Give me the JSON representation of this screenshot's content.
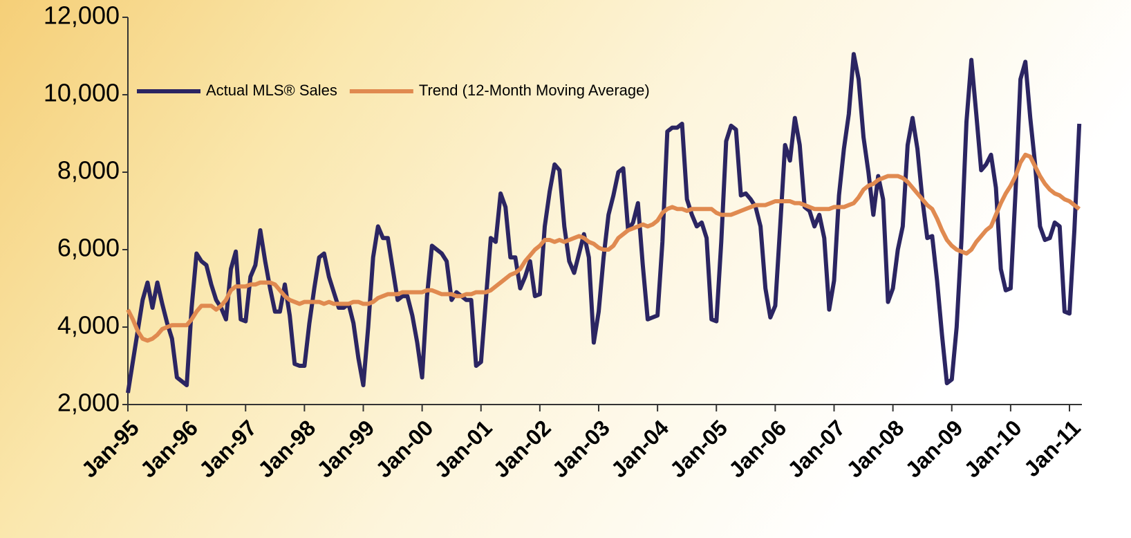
{
  "chart_data": {
    "type": "line",
    "categories": [
      "Jan-95",
      null,
      null,
      null,
      null,
      null,
      null,
      null,
      null,
      null,
      null,
      null,
      "Jan-96",
      null,
      null,
      null,
      null,
      null,
      null,
      null,
      null,
      null,
      null,
      null,
      "Jan-97",
      null,
      null,
      null,
      null,
      null,
      null,
      null,
      null,
      null,
      null,
      null,
      "Jan-98",
      null,
      null,
      null,
      null,
      null,
      null,
      null,
      null,
      null,
      null,
      null,
      "Jan-99",
      null,
      null,
      null,
      null,
      null,
      null,
      null,
      null,
      null,
      null,
      null,
      "Jan-00",
      null,
      null,
      null,
      null,
      null,
      null,
      null,
      null,
      null,
      null,
      null,
      "Jan-01",
      null,
      null,
      null,
      null,
      null,
      null,
      null,
      null,
      null,
      null,
      null,
      "Jan-02",
      null,
      null,
      null,
      null,
      null,
      null,
      null,
      null,
      null,
      null,
      null,
      "Jan-03",
      null,
      null,
      null,
      null,
      null,
      null,
      null,
      null,
      null,
      null,
      null,
      "Jan-04",
      null,
      null,
      null,
      null,
      null,
      null,
      null,
      null,
      null,
      null,
      null,
      "Jan-05",
      null,
      null,
      null,
      null,
      null,
      null,
      null,
      null,
      null,
      null,
      null,
      "Jan-06",
      null,
      null,
      null,
      null,
      null,
      null,
      null,
      null,
      null,
      null,
      null,
      "Jan-07",
      null,
      null,
      null,
      null,
      null,
      null,
      null,
      null,
      null,
      null,
      null,
      "Jan-08",
      null,
      null,
      null,
      null,
      null,
      null,
      null,
      null,
      null,
      null,
      null,
      "Jan-09",
      null,
      null,
      null,
      null,
      null,
      null,
      null,
      null,
      null,
      null,
      null,
      "Jan-10",
      null,
      null,
      null,
      null,
      null,
      null,
      null,
      null,
      null,
      null,
      null,
      "Jan-11",
      null,
      null
    ],
    "series": [
      {
        "name": "Actual MLS® Sales",
        "color": "#2b2562",
        "values": [
          2300,
          3100,
          3900,
          4700,
          5150,
          4500,
          5150,
          4600,
          4100,
          3700,
          2700,
          2600,
          2500,
          4500,
          5900,
          5700,
          5600,
          5100,
          4700,
          4500,
          4200,
          5500,
          5950,
          4200,
          4150,
          5300,
          5600,
          6500,
          5700,
          5000,
          4400,
          4400,
          5100,
          4300,
          3050,
          3000,
          3000,
          4100,
          5000,
          5800,
          5900,
          5300,
          4900,
          4500,
          4500,
          4600,
          4100,
          3200,
          2500,
          4000,
          5800,
          6600,
          6300,
          6300,
          5500,
          4700,
          4800,
          4800,
          4300,
          3600,
          2700,
          4800,
          6100,
          6000,
          5900,
          5700,
          4700,
          4900,
          4800,
          4700,
          4700,
          3000,
          3100,
          4700,
          6300,
          6200,
          7450,
          7100,
          5800,
          5800,
          5000,
          5300,
          5700,
          4800,
          4850,
          6600,
          7500,
          8200,
          8050,
          6600,
          5700,
          5400,
          5900,
          6400,
          5800,
          3600,
          4400,
          5800,
          6900,
          7400,
          8000,
          8100,
          6500,
          6700,
          7200,
          5600,
          4200,
          4250,
          4300,
          6200,
          9050,
          9150,
          9150,
          9250,
          7300,
          6900,
          6600,
          6700,
          6300,
          4200,
          4150,
          6200,
          8800,
          9200,
          9100,
          7400,
          7450,
          7300,
          7100,
          6600,
          5000,
          4250,
          4550,
          6600,
          8700,
          8300,
          9400,
          8700,
          7100,
          7000,
          6600,
          6900,
          6300,
          4450,
          5200,
          7400,
          8600,
          9500,
          11050,
          10400,
          8900,
          8000,
          6900,
          7900,
          7300,
          4650,
          5000,
          6000,
          6600,
          8700,
          9400,
          8600,
          7300,
          6300,
          6350,
          5200,
          3800,
          2550,
          2650,
          4000,
          6300,
          9300,
          10900,
          9500,
          8050,
          8200,
          8450,
          7600,
          5500,
          4950,
          5000,
          7500,
          10400,
          10850,
          9400,
          8200,
          6600,
          6250,
          6300,
          6700,
          6600,
          4400,
          4350,
          6500,
          9250
        ]
      },
      {
        "name": "Trend (12-Month Moving Average)",
        "color": "#e08a50",
        "values": [
          4450,
          4200,
          3900,
          3700,
          3650,
          3700,
          3800,
          3950,
          4000,
          4050,
          4050,
          4050,
          4050,
          4200,
          4400,
          4550,
          4550,
          4550,
          4450,
          4550,
          4700,
          4950,
          5050,
          5050,
          5050,
          5100,
          5100,
          5150,
          5150,
          5150,
          5100,
          4950,
          4800,
          4700,
          4650,
          4600,
          4650,
          4650,
          4650,
          4650,
          4600,
          4650,
          4600,
          4600,
          4600,
          4600,
          4650,
          4650,
          4600,
          4600,
          4650,
          4750,
          4800,
          4850,
          4850,
          4850,
          4900,
          4900,
          4900,
          4900,
          4900,
          4950,
          4950,
          4900,
          4850,
          4850,
          4850,
          4800,
          4800,
          4850,
          4850,
          4900,
          4900,
          4900,
          4950,
          5050,
          5150,
          5250,
          5350,
          5400,
          5500,
          5700,
          5850,
          6000,
          6100,
          6250,
          6250,
          6200,
          6250,
          6200,
          6250,
          6300,
          6350,
          6300,
          6200,
          6150,
          6050,
          6000,
          6000,
          6100,
          6300,
          6400,
          6500,
          6550,
          6600,
          6650,
          6600,
          6650,
          6750,
          6950,
          7050,
          7100,
          7050,
          7050,
          7000,
          7050,
          7050,
          7050,
          7050,
          7050,
          6950,
          6900,
          6900,
          6900,
          6950,
          7000,
          7050,
          7100,
          7150,
          7150,
          7150,
          7200,
          7250,
          7250,
          7250,
          7250,
          7200,
          7200,
          7150,
          7100,
          7050,
          7050,
          7050,
          7050,
          7100,
          7100,
          7100,
          7150,
          7200,
          7350,
          7550,
          7650,
          7700,
          7800,
          7850,
          7900,
          7900,
          7900,
          7850,
          7750,
          7600,
          7450,
          7300,
          7150,
          7050,
          6800,
          6500,
          6250,
          6100,
          6000,
          5950,
          5900,
          6000,
          6200,
          6350,
          6500,
          6600,
          6900,
          7200,
          7450,
          7650,
          7900,
          8250,
          8450,
          8400,
          8150,
          7900,
          7700,
          7550,
          7450,
          7400,
          7300,
          7250,
          7150,
          7050
        ]
      }
    ],
    "ylim": [
      2000,
      12000
    ],
    "yticks": [
      {
        "value": 2000,
        "label": "2,000"
      },
      {
        "value": 4000,
        "label": "4,000"
      },
      {
        "value": 6000,
        "label": "6,000"
      },
      {
        "value": 8000,
        "label": "8,000"
      },
      {
        "value": 10000,
        "label": "10,000"
      },
      {
        "value": 12000,
        "label": "12,000"
      }
    ],
    "grid": false,
    "legend": "top-left"
  }
}
